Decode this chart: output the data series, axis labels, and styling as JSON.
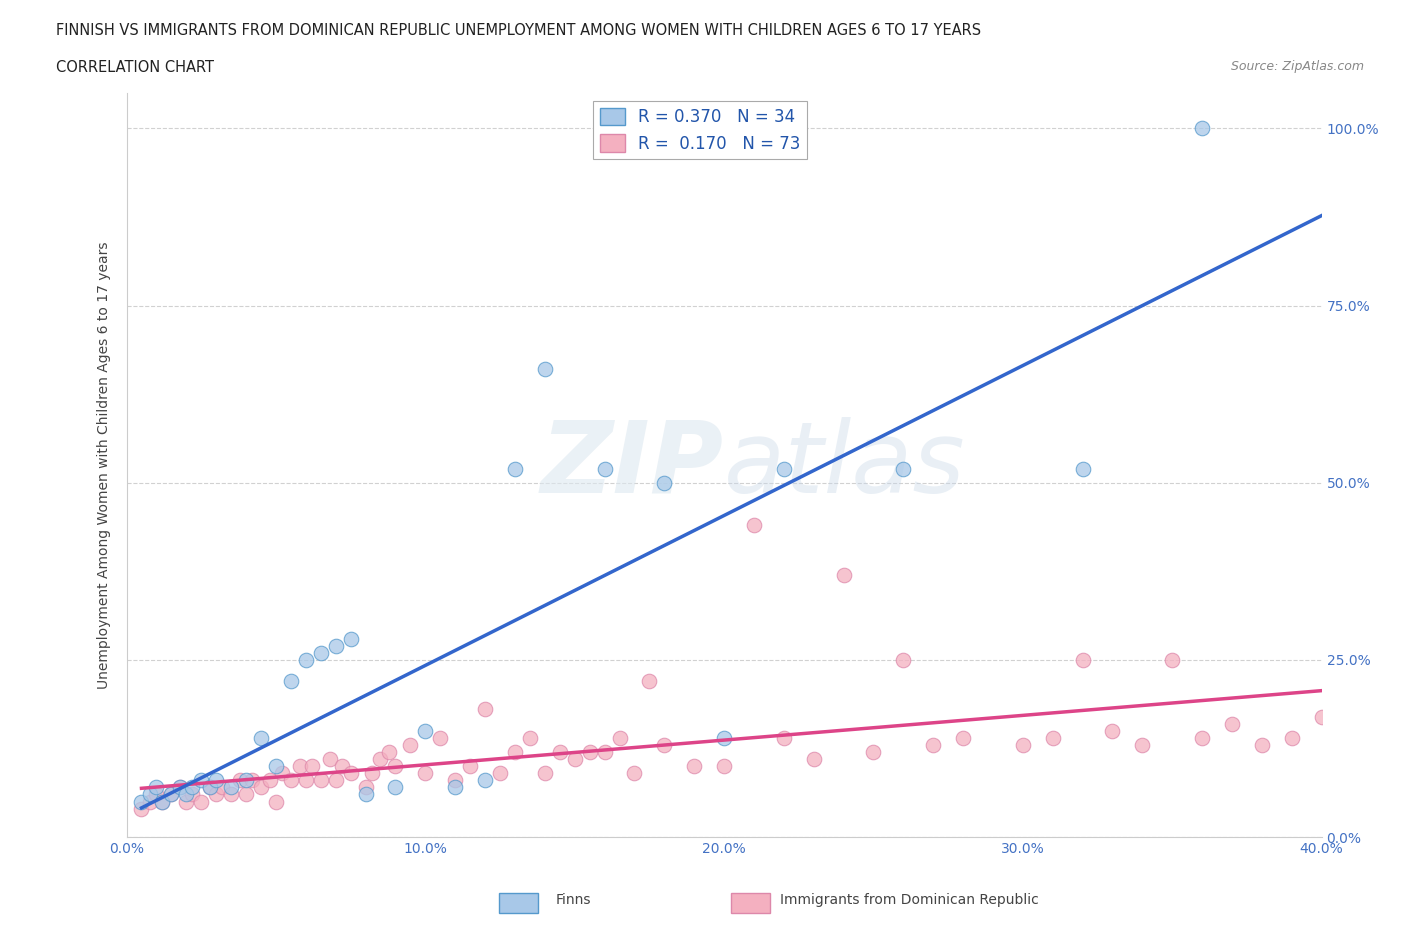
{
  "title_line1": "FINNISH VS IMMIGRANTS FROM DOMINICAN REPUBLIC UNEMPLOYMENT AMONG WOMEN WITH CHILDREN AGES 6 TO 17 YEARS",
  "title_line2": "CORRELATION CHART",
  "source": "Source: ZipAtlas.com",
  "ylabel": "Unemployment Among Women with Children Ages 6 to 17 years",
  "xlim": [
    0.0,
    0.4
  ],
  "ylim": [
    0.0,
    1.05
  ],
  "xticks": [
    0.0,
    0.1,
    0.2,
    0.3,
    0.4
  ],
  "xticklabels": [
    "0.0%",
    "10.0%",
    "20.0%",
    "30.0%",
    "40.0%"
  ],
  "yticks": [
    0.0,
    0.25,
    0.5,
    0.75,
    1.0
  ],
  "yticklabels": [
    "0.0%",
    "25.0%",
    "50.0%",
    "75.0%",
    "100.0%"
  ],
  "finns_color": "#a8c8e8",
  "immigrants_color": "#f4b0c0",
  "finn_trend_color": "#3366cc",
  "immigrant_trend_color": "#dd4488",
  "background_color": "#ffffff",
  "finns_R": 0.37,
  "finns_N": 34,
  "immigrants_R": 0.17,
  "immigrants_N": 73,
  "finns_x": [
    0.005,
    0.008,
    0.01,
    0.012,
    0.015,
    0.018,
    0.02,
    0.022,
    0.025,
    0.028,
    0.03,
    0.035,
    0.04,
    0.045,
    0.05,
    0.055,
    0.06,
    0.065,
    0.07,
    0.075,
    0.08,
    0.09,
    0.1,
    0.11,
    0.12,
    0.13,
    0.14,
    0.16,
    0.18,
    0.2,
    0.22,
    0.26,
    0.32,
    0.36
  ],
  "finns_y": [
    0.05,
    0.06,
    0.07,
    0.05,
    0.06,
    0.07,
    0.06,
    0.07,
    0.08,
    0.07,
    0.08,
    0.07,
    0.08,
    0.14,
    0.1,
    0.22,
    0.25,
    0.26,
    0.27,
    0.28,
    0.06,
    0.07,
    0.15,
    0.07,
    0.08,
    0.52,
    0.66,
    0.52,
    0.5,
    0.14,
    0.52,
    0.52,
    0.52,
    1.0
  ],
  "immigrants_x": [
    0.005,
    0.008,
    0.01,
    0.012,
    0.015,
    0.018,
    0.02,
    0.022,
    0.025,
    0.028,
    0.03,
    0.032,
    0.035,
    0.038,
    0.04,
    0.042,
    0.045,
    0.048,
    0.05,
    0.052,
    0.055,
    0.058,
    0.06,
    0.062,
    0.065,
    0.068,
    0.07,
    0.072,
    0.075,
    0.08,
    0.082,
    0.085,
    0.088,
    0.09,
    0.095,
    0.1,
    0.105,
    0.11,
    0.115,
    0.12,
    0.125,
    0.13,
    0.135,
    0.14,
    0.145,
    0.15,
    0.155,
    0.16,
    0.165,
    0.17,
    0.175,
    0.18,
    0.19,
    0.2,
    0.21,
    0.22,
    0.23,
    0.24,
    0.25,
    0.26,
    0.27,
    0.28,
    0.3,
    0.31,
    0.32,
    0.33,
    0.34,
    0.35,
    0.36,
    0.37,
    0.38,
    0.39,
    0.4
  ],
  "immigrants_y": [
    0.04,
    0.05,
    0.06,
    0.05,
    0.06,
    0.07,
    0.05,
    0.06,
    0.05,
    0.07,
    0.06,
    0.07,
    0.06,
    0.08,
    0.06,
    0.08,
    0.07,
    0.08,
    0.05,
    0.09,
    0.08,
    0.1,
    0.08,
    0.1,
    0.08,
    0.11,
    0.08,
    0.1,
    0.09,
    0.07,
    0.09,
    0.11,
    0.12,
    0.1,
    0.13,
    0.09,
    0.14,
    0.08,
    0.1,
    0.18,
    0.09,
    0.12,
    0.14,
    0.09,
    0.12,
    0.11,
    0.12,
    0.12,
    0.14,
    0.09,
    0.22,
    0.13,
    0.1,
    0.1,
    0.44,
    0.14,
    0.11,
    0.37,
    0.12,
    0.25,
    0.13,
    0.14,
    0.13,
    0.14,
    0.25,
    0.15,
    0.13,
    0.25,
    0.14,
    0.16,
    0.13,
    0.14,
    0.17
  ]
}
